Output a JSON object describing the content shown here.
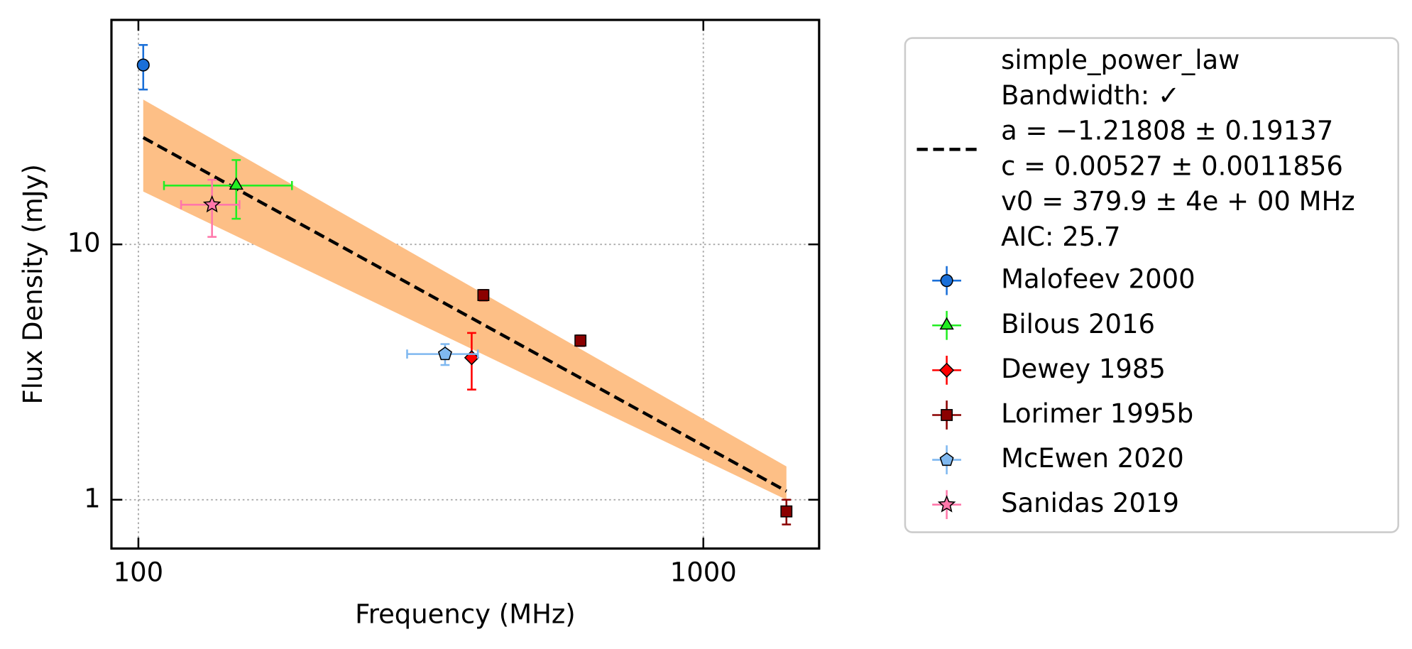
{
  "chart_data": {
    "type": "scatter",
    "xlabel": "Frequency (MHz)",
    "ylabel": "Flux Density (mJy)",
    "xscale": "log",
    "yscale": "log",
    "grid": true,
    "legend": "outside right",
    "xlim": [
      89.6,
      1603
    ],
    "ylim": [
      0.644,
      75.7
    ],
    "xticks": [
      100,
      1000
    ],
    "yticks": [
      1,
      10
    ],
    "fit": {
      "x": [
        102,
        1403
      ],
      "y": [
        26.2,
        1.08
      ],
      "upper": [
        36.9,
        1.35
      ],
      "lower": [
        16.1,
        1.0
      ],
      "color": "#000000",
      "band_color": "#fdbf86",
      "label_lines": [
        "simple_power_law",
        "Bandwidth: ✓",
        "a = −1.21808 ± 0.19137",
        "c = 0.00527 ± 0.0011856",
        "v0 = 379.9 ± 4e + 00 MHz",
        "AIC: 25.7"
      ]
    },
    "series": [
      {
        "name": "Malofeev 2000",
        "color": "#1a6fd8",
        "marker": "circle",
        "x": [
          102
        ],
        "y": [
          50.4
        ],
        "yerr": [
          10
        ],
        "xerr": [
          null
        ]
      },
      {
        "name": "Bilous 2016",
        "color": "#22ee22",
        "marker": "triangle",
        "x": [
          149
        ],
        "y": [
          17.0
        ],
        "yerr": [
          4.4
        ],
        "xerr": [
          38
        ]
      },
      {
        "name": "Dewey 1985",
        "color": "#ff0000",
        "marker": "diamond",
        "x": [
          389
        ],
        "y": [
          3.6
        ],
        "yerr": [
          0.9
        ],
        "xerr": [
          null
        ]
      },
      {
        "name": "Lorimer 1995b",
        "color": "#8b0000",
        "marker": "square",
        "x": [
          408,
          606,
          1403
        ],
        "y": [
          6.33,
          4.2,
          0.9
        ],
        "yerr": [
          0.3,
          0.2,
          0.1
        ],
        "xerr": [
          null,
          null,
          null
        ]
      },
      {
        "name": "McEwen 2020",
        "color": "#7fb8f0",
        "marker": "pentagon",
        "x": [
          349
        ],
        "y": [
          3.72
        ],
        "yerr": [
          0.35
        ],
        "xerr": [
          50
        ]
      },
      {
        "name": "Sanidas 2019",
        "color": "#ff77aa",
        "marker": "star",
        "x": [
          135
        ],
        "y": [
          14.3
        ],
        "yerr": [
          3.6
        ],
        "xerr": [
          16
        ]
      }
    ]
  }
}
